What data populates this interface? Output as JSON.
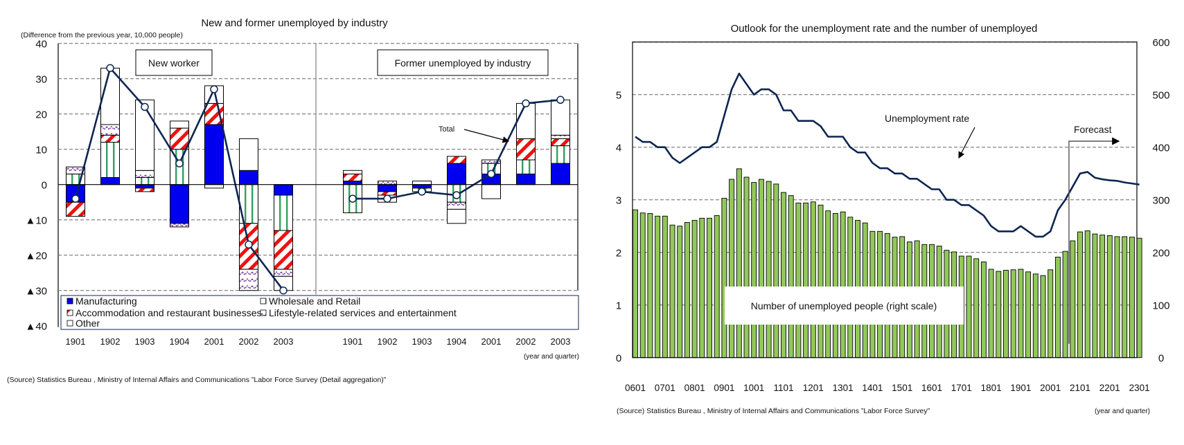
{
  "chart_data": [
    {
      "type": "bar",
      "stacked": true,
      "title": "New and former unemployed by industry",
      "ylabel": "(Difference from the previous year, 10,000 people)",
      "xlabel": "(year and quarter)",
      "ylim": [
        -40,
        40
      ],
      "y_tick_labels": [
        "40",
        "30",
        "20",
        "10",
        "0",
        "▲10",
        "▲20",
        "▲30",
        "▲40"
      ],
      "grid": true,
      "legend_position": "bottom",
      "panels": [
        {
          "label": "New worker",
          "categories": [
            "1901",
            "1902",
            "1903",
            "1904",
            "2001",
            "2002",
            "2003"
          ],
          "series": [
            {
              "name": "Manufacturing",
              "values": [
                -5,
                2,
                -1,
                -11,
                17,
                4,
                -3
              ]
            },
            {
              "name": "Wholesale and Retail",
              "values": [
                3,
                10,
                2,
                10,
                0,
                -11,
                -10
              ]
            },
            {
              "name": "Accommodation and restaurant businesses",
              "values": [
                -4,
                2,
                -1,
                6,
                6,
                -13,
                -11
              ]
            },
            {
              "name": "Lifestyle-related services and entertainment",
              "values": [
                2,
                3,
                2,
                -1,
                -1,
                -6,
                -2
              ]
            },
            {
              "name": "Other",
              "values": [
                0,
                16,
                20,
                2,
                5,
                9,
                -4
              ]
            }
          ],
          "total": [
            -4,
            33,
            22,
            6,
            27,
            -17,
            -30
          ]
        },
        {
          "label": "Former unemployed by industry",
          "categories": [
            "1901",
            "1902",
            "1903",
            "1904",
            "2001",
            "2002",
            "2003"
          ],
          "series": [
            {
              "name": "Manufacturing",
              "values": [
                1,
                -2,
                -1,
                6,
                3,
                3,
                6
              ]
            },
            {
              "name": "Wholesale and Retail",
              "values": [
                -8,
                0,
                -1,
                -5,
                3,
                4,
                5
              ]
            },
            {
              "name": "Accommodation and restaurant businesses",
              "values": [
                2,
                -1,
                0,
                2,
                0,
                6,
                2
              ]
            },
            {
              "name": "Lifestyle-related services and entertainment",
              "values": [
                0,
                1,
                0,
                -2,
                1,
                0,
                1
              ]
            },
            {
              "name": "Other",
              "values": [
                1,
                -2,
                1,
                -4,
                -4,
                10,
                10
              ]
            }
          ],
          "total": [
            -4,
            -4,
            -2,
            -3,
            3,
            23,
            24
          ]
        }
      ],
      "total_label": "Total",
      "legend": [
        "Manufacturing",
        "Accommodation and restaurant businesses",
        "Other",
        "Wholesale and Retail",
        "Lifestyle-related services and entertainment"
      ],
      "source": "(Source) Statistics Bureau , Ministry of Internal Affairs and Communications ”Labor Force Survey (Detail aggregation)”",
      "colors": {
        "manufacturing": "#0000ee",
        "wholesale": "#33a060",
        "accommodation": "#ee1111",
        "lifestyle": "#7a3fa0",
        "other": "#ffffff",
        "total_line": "#0d2550"
      }
    },
    {
      "type": "bar+line",
      "title": "Outlook for the unemployment rate and the number of unemployed",
      "xlabel": "(year and quarter)",
      "y_left_lim": [
        0,
        6
      ],
      "y_left_tick_labels": [
        "0",
        "1",
        "2",
        "3",
        "4",
        "5"
      ],
      "y_right_lim": [
        0,
        600
      ],
      "y_right_tick_labels": [
        "0",
        "100",
        "200",
        "300",
        "400",
        "500",
        "600"
      ],
      "grid": true,
      "x_tick_labels": [
        "0601",
        "0701",
        "0801",
        "0901",
        "1001",
        "1101",
        "1201",
        "1301",
        "1401",
        "1501",
        "1601",
        "1701",
        "1801",
        "1901",
        "2001",
        "2101",
        "2201",
        "2301"
      ],
      "unemployment_rate": {
        "name": "Unemployment rate",
        "axis": "left",
        "values": [
          4.2,
          4.1,
          4.1,
          4.0,
          4.0,
          3.8,
          3.7,
          3.8,
          3.9,
          4.0,
          4.0,
          4.1,
          4.6,
          5.1,
          5.4,
          5.2,
          5.0,
          5.1,
          5.1,
          5.0,
          4.7,
          4.7,
          4.5,
          4.5,
          4.5,
          4.4,
          4.2,
          4.2,
          4.2,
          4.0,
          3.9,
          3.9,
          3.7,
          3.6,
          3.6,
          3.5,
          3.5,
          3.4,
          3.4,
          3.3,
          3.2,
          3.2,
          3.0,
          3.0,
          2.9,
          2.9,
          2.8,
          2.7,
          2.5,
          2.4,
          2.4,
          2.4,
          2.5,
          2.4,
          2.3,
          2.3,
          2.4,
          2.8,
          3.0,
          3.25,
          3.5,
          3.53,
          3.42,
          3.39,
          3.37,
          3.36,
          3.33,
          3.31,
          3.29
        ]
      },
      "unemployed_people": {
        "name": "Number of unemployed people (right scale)",
        "axis": "right",
        "values": [
          281,
          275,
          274,
          269,
          269,
          252,
          250,
          257,
          261,
          265,
          265,
          270,
          303,
          339,
          359,
          343,
          333,
          339,
          335,
          330,
          314,
          308,
          294,
          294,
          296,
          290,
          279,
          274,
          277,
          267,
          261,
          256,
          240,
          240,
          236,
          229,
          230,
          220,
          222,
          215,
          215,
          212,
          204,
          201,
          193,
          193,
          188,
          182,
          168,
          164,
          166,
          167,
          168,
          163,
          159,
          156,
          167,
          191,
          202,
          222,
          239,
          241,
          235,
          233,
          232,
          230,
          230,
          229,
          227
        ]
      },
      "forecast_label": "Forecast",
      "forecast_start_quarter": "2004",
      "source": "(Source) Statistics Bureau , Ministry of Internal Affairs and Communications ”Labor Force Survey”",
      "colors": {
        "bars": "#92c85a",
        "line": "#0d2550"
      }
    }
  ]
}
